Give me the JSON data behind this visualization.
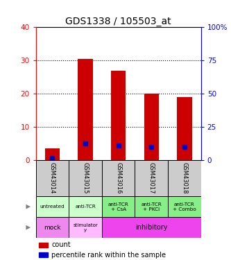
{
  "title": "GDS1338 / 105503_at",
  "samples": [
    "GSM43014",
    "GSM43015",
    "GSM43016",
    "GSM43017",
    "GSM43018"
  ],
  "counts": [
    3.5,
    30.5,
    27.0,
    20.0,
    19.0
  ],
  "percentile_ranks": [
    1.5,
    12.5,
    11.0,
    9.5,
    9.5
  ],
  "left_ylim": [
    0,
    40
  ],
  "right_ylim": [
    0,
    100
  ],
  "left_yticks": [
    0,
    10,
    20,
    30,
    40
  ],
  "right_yticks": [
    0,
    25,
    50,
    75,
    100
  ],
  "agent_labels": [
    "untreated",
    "anti-TCR",
    "anti-TCR\n+ CsA",
    "anti-TCR\n+ PKCi",
    "anti-TCR\n+ Combo"
  ],
  "agent_color_light": "#ccffcc",
  "agent_color_dark": "#88ee88",
  "sample_box_color": "#cccccc",
  "protocol_mock_color": "#ee88ee",
  "protocol_stim_color": "#ffbbff",
  "protocol_inhib_color": "#ee44ee",
  "bar_color": "#cc0000",
  "dot_color": "#0000cc",
  "title_fontsize": 10,
  "tick_fontsize": 7.5,
  "cell_fontsize": 6,
  "label_fontsize": 8,
  "legend_fontsize": 7
}
